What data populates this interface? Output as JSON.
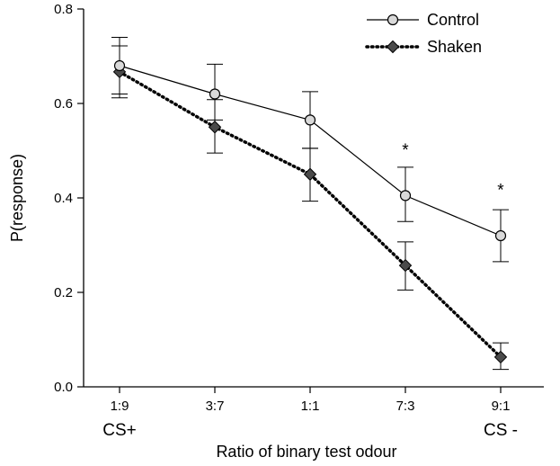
{
  "chart_data": {
    "type": "line",
    "xlabel": "Ratio of binary test odour",
    "ylabel": "P(response)",
    "ylim": [
      0,
      0.8
    ],
    "yticks": [
      "0.0",
      "0.2",
      "0.4",
      "0.6",
      "0.8"
    ],
    "categories": [
      "1:9",
      "3:7",
      "1:1",
      "7:3",
      "9:1"
    ],
    "endpoint_labels": {
      "first": "CS+",
      "last": "CS -"
    },
    "grid": false,
    "legend_position": "top-right",
    "series": [
      {
        "name": "Control",
        "marker": "circle",
        "line_style": "solid",
        "marker_color": "#d9d9d9",
        "values": [
          0.68,
          0.62,
          0.565,
          0.405,
          0.32
        ],
        "err_low": [
          0.62,
          0.565,
          0.505,
          0.35,
          0.265
        ],
        "err_high": [
          0.74,
          0.683,
          0.625,
          0.465,
          0.375
        ]
      },
      {
        "name": "Shaken",
        "marker": "diamond",
        "line_style": "dotted",
        "marker_color": "#4a4a4a",
        "values": [
          0.667,
          0.55,
          0.45,
          0.257,
          0.063
        ],
        "err_low": [
          0.612,
          0.495,
          0.393,
          0.205,
          0.037
        ],
        "err_high": [
          0.722,
          0.608,
          0.505,
          0.307,
          0.093
        ]
      }
    ],
    "annotations": [
      {
        "category": "7:3",
        "text": "*",
        "at_value": 0.49
      },
      {
        "category": "9:1",
        "text": "*",
        "at_value": 0.405
      }
    ]
  }
}
